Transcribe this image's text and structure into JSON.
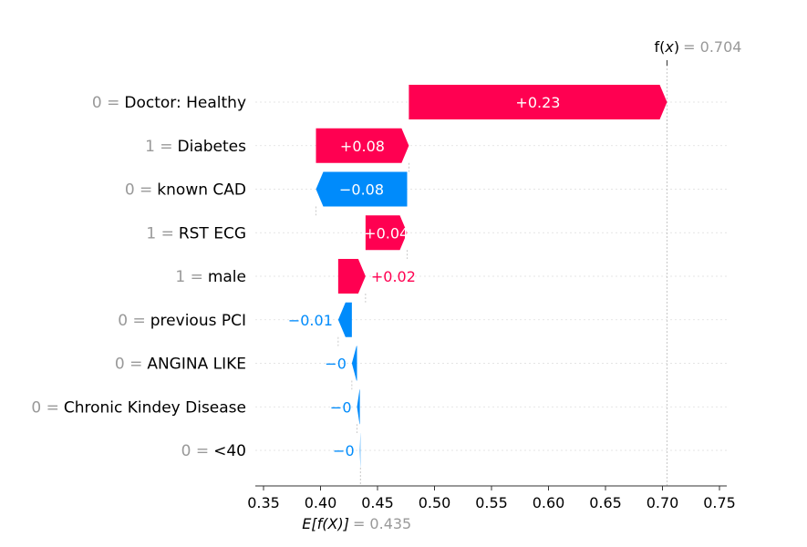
{
  "chart_data": {
    "type": "waterfall",
    "fx": {
      "label_prefix": "f(",
      "label_var": "x",
      "label_suffix": ")",
      "value_text": "= 0.704",
      "value": 0.704
    },
    "efx": {
      "label": "E[f(X)]",
      "value_text": "= 0.435",
      "value": 0.435
    },
    "xlim": [
      0.34,
      0.76
    ],
    "xticks": [
      0.35,
      0.4,
      0.45,
      0.5,
      0.55,
      0.6,
      0.65,
      0.7,
      0.75
    ],
    "xtick_labels": [
      "0.35",
      "0.40",
      "0.45",
      "0.50",
      "0.55",
      "0.60",
      "0.65",
      "0.70",
      "0.75"
    ],
    "features": [
      {
        "value_text": "0 =",
        "name": "Doctor: Healthy",
        "start": 0.4775,
        "end": 0.704,
        "label": "+0.23",
        "label_position": "inside"
      },
      {
        "value_text": "1 =",
        "name": "Diabetes",
        "start": 0.396,
        "end": 0.4775,
        "label": "+0.08",
        "label_position": "inside"
      },
      {
        "value_text": "0 =",
        "name": "known CAD",
        "start": 0.476,
        "end": 0.396,
        "label": "−0.08",
        "label_position": "inside"
      },
      {
        "value_text": "1 =",
        "name": "RST ECG",
        "start": 0.4395,
        "end": 0.476,
        "label": "+0.04",
        "label_position": "inside"
      },
      {
        "value_text": "1 =",
        "name": "male",
        "start": 0.4155,
        "end": 0.4395,
        "label": "+0.02",
        "label_position": "outside"
      },
      {
        "value_text": "0 =",
        "name": "previous PCI",
        "start": 0.4275,
        "end": 0.4155,
        "label": "−0.01",
        "label_position": "outside"
      },
      {
        "value_text": "0 =",
        "name": "ANGINA LIKE",
        "start": 0.432,
        "end": 0.4275,
        "label": "−0",
        "label_position": "outside"
      },
      {
        "value_text": "0 =",
        "name": "Chronic Kindey Disease",
        "start": 0.4345,
        "end": 0.432,
        "label": "−0",
        "label_position": "outside"
      },
      {
        "value_text": "0 =",
        "name": "<40",
        "start": 0.435,
        "end": 0.4345,
        "label": "−0",
        "label_position": "outside"
      }
    ],
    "colors": {
      "positive": "#ff0051",
      "negative": "#008bfb",
      "gray_text": "#999999",
      "axis": "#333333"
    }
  }
}
